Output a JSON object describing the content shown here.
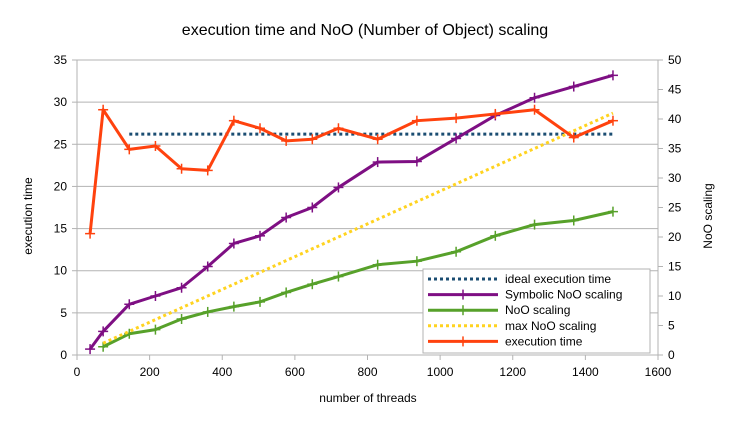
{
  "chart_data": {
    "type": "line",
    "title": "execution time and NoO (Number of Object) scaling",
    "xlabel": "number of threads",
    "ylabel_left": "execution time",
    "ylabel_right": "NoO scaling",
    "xlim": [
      0,
      1600
    ],
    "ylim_left": [
      0,
      35
    ],
    "ylim_right": [
      0,
      50
    ],
    "x_ticks": [
      0,
      200,
      400,
      600,
      800,
      1000,
      1200,
      1400,
      1600
    ],
    "y_left_ticks": [
      0,
      5,
      10,
      15,
      20,
      25,
      30,
      35
    ],
    "y_right_ticks": [
      0,
      5,
      10,
      15,
      20,
      25,
      30,
      35,
      40,
      45,
      50
    ],
    "grid": "horizontal",
    "legend_position": "bottom-right",
    "series": [
      {
        "name": "ideal execution time",
        "axis": "left",
        "style": "dotted",
        "color": "#1b4d72",
        "markers": false,
        "x": [
          144,
          1476
        ],
        "y": [
          26.2,
          26.2
        ]
      },
      {
        "name": "Symbolic NoO scaling",
        "axis": "right",
        "style": "solid",
        "color": "#7e0f83",
        "markers": true,
        "x": [
          36,
          72,
          144,
          216,
          288,
          360,
          432,
          504,
          576,
          648,
          720,
          828,
          936,
          1044,
          1152,
          1260,
          1368,
          1476
        ],
        "y": [
          1,
          4,
          8.6,
          10,
          11.4,
          15,
          18.9,
          20.2,
          23.3,
          25,
          28.4,
          32.7,
          32.8,
          36.7,
          40.6,
          43.6,
          45.5,
          47.4
        ]
      },
      {
        "name": "NoO scaling",
        "axis": "right",
        "style": "solid",
        "color": "#57a12a",
        "markers": true,
        "x": [
          72,
          144,
          216,
          288,
          360,
          432,
          504,
          576,
          648,
          720,
          828,
          936,
          1044,
          1152,
          1260,
          1368,
          1476
        ],
        "y": [
          1.4,
          3.6,
          4.3,
          6.1,
          7.3,
          8.2,
          9,
          10.6,
          12,
          13.3,
          15.3,
          15.9,
          17.5,
          20.2,
          22.1,
          22.8,
          24.3
        ]
      },
      {
        "name": "max NoO scaling",
        "axis": "right",
        "style": "dotted",
        "color": "#ffd320",
        "markers": false,
        "x": [
          72,
          1476
        ],
        "y": [
          2,
          41
        ]
      },
      {
        "name": "execution time",
        "axis": "left",
        "style": "solid",
        "color": "#ff420e",
        "markers": true,
        "x": [
          36,
          72,
          144,
          216,
          288,
          360,
          432,
          504,
          576,
          648,
          720,
          828,
          936,
          1044,
          1152,
          1260,
          1368,
          1476
        ],
        "y": [
          14.4,
          29.1,
          24.4,
          24.8,
          22.1,
          21.9,
          27.8,
          26.9,
          25.4,
          25.6,
          26.9,
          25.6,
          27.8,
          28.1,
          28.6,
          29.1,
          25.8,
          27.8
        ]
      }
    ]
  }
}
